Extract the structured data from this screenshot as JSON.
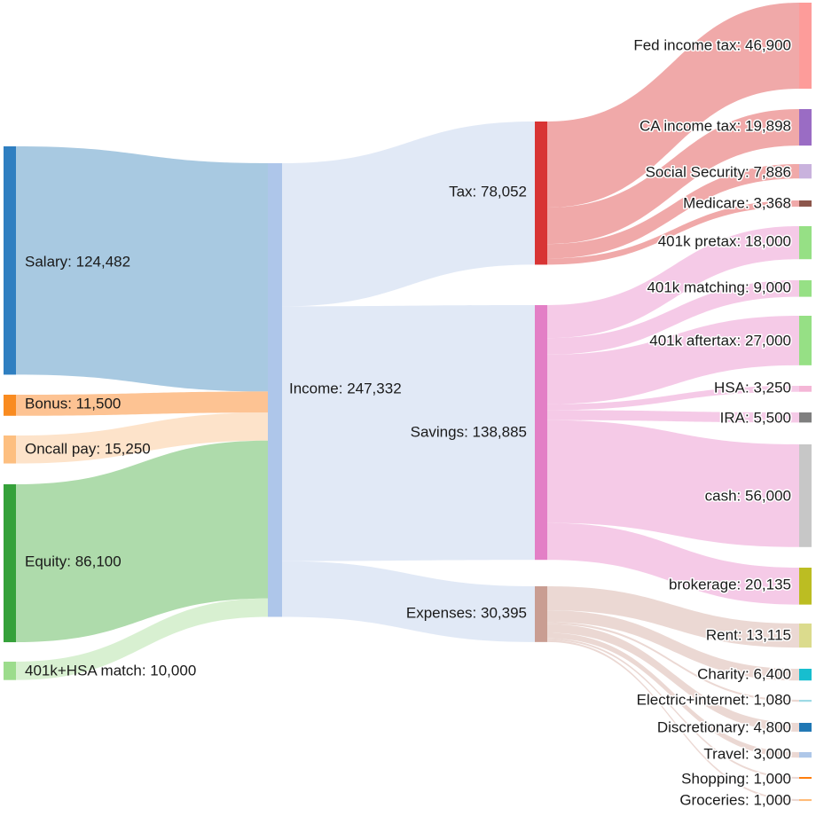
{
  "chart_data": {
    "type": "sankey",
    "nodes": [
      {
        "id": "salary",
        "name": "Salary",
        "value": 124482,
        "label": "Salary: 124,482",
        "color": "#2f7fc1",
        "linkColor": "#a3c6df"
      },
      {
        "id": "bonus",
        "name": "Bonus",
        "value": 11500,
        "label": "Bonus: 11,500",
        "color": "#f98b20",
        "linkColor": "#fdc08d"
      },
      {
        "id": "oncall",
        "name": "Oncall pay",
        "value": 15250,
        "label": "Oncall pay: 15,250",
        "color": "#fdbf80",
        "linkColor": "#fde2c7"
      },
      {
        "id": "equity",
        "name": "Equity",
        "value": 86100,
        "label": "Equity: 86,100",
        "color": "#35a13a",
        "linkColor": "#aad9a6"
      },
      {
        "id": "match",
        "name": "401k+HSA match",
        "value": 10000,
        "label": "401k+HSA match: 10,000",
        "color": "#9cdc8c",
        "linkColor": "#d6efcf"
      },
      {
        "id": "income",
        "name": "Income",
        "value": 247332,
        "label": "Income: 247,332",
        "color": "#aec6ea",
        "linkColor": "#dfe8f5"
      },
      {
        "id": "tax",
        "name": "Tax",
        "value": 78052,
        "label": "Tax: 78,052",
        "color": "#d83434",
        "linkColor": "#efa4a4"
      },
      {
        "id": "savings",
        "name": "Savings",
        "value": 138885,
        "label": "Savings: 138,885",
        "color": "#e37fc6",
        "linkColor": "#f4c7e6"
      },
      {
        "id": "expenses",
        "name": "Expenses",
        "value": 30395,
        "label": "Expenses: 30,395",
        "color": "#c99d92",
        "linkColor": "#ead6d1"
      },
      {
        "id": "fed",
        "name": "Fed income tax",
        "value": 46900,
        "label": "Fed income tax: 46,900",
        "color": "#fd9c9a"
      },
      {
        "id": "ca",
        "name": "CA income tax",
        "value": 19898,
        "label": "CA income tax: 19,898",
        "color": "#9a6cc4"
      },
      {
        "id": "ss",
        "name": "Social Security",
        "value": 7886,
        "label": "Social Security: 7,886",
        "color": "#c9b2dd"
      },
      {
        "id": "medicare",
        "name": "Medicare",
        "value": 3368,
        "label": "Medicare: 3,368",
        "color": "#8c564b"
      },
      {
        "id": "k401pre",
        "name": "401k pretax",
        "value": 18000,
        "label": "401k pretax: 18,000",
        "color": "#96e085"
      },
      {
        "id": "k401match",
        "name": "401k matching",
        "value": 9000,
        "label": "401k matching: 9,000",
        "color": "#96e085"
      },
      {
        "id": "k401after",
        "name": "401k aftertax",
        "value": 27000,
        "label": "401k aftertax: 27,000",
        "color": "#96e085"
      },
      {
        "id": "hsa",
        "name": "HSA",
        "value": 3250,
        "label": "HSA: 3,250",
        "color": "#f4b6d6"
      },
      {
        "id": "ira",
        "name": "IRA",
        "value": 5500,
        "label": "IRA: 5,500",
        "color": "#7f7f7f"
      },
      {
        "id": "cash",
        "name": "cash",
        "value": 56000,
        "label": "cash: 56,000",
        "color": "#c7c7c7"
      },
      {
        "id": "brokerage",
        "name": "brokerage",
        "value": 20135,
        "label": "brokerage: 20,135",
        "color": "#bcbd22"
      },
      {
        "id": "rent",
        "name": "Rent",
        "value": 13115,
        "label": "Rent: 13,115",
        "color": "#dbdb8d"
      },
      {
        "id": "charity",
        "name": "Charity",
        "value": 6400,
        "label": "Charity: 6,400",
        "color": "#17becf"
      },
      {
        "id": "electric",
        "name": "Electric+internet",
        "value": 1080,
        "label": "Electric+internet: 1,080",
        "color": "#9edae5"
      },
      {
        "id": "discretionary",
        "name": "Discretionary",
        "value": 4800,
        "label": "Discretionary: 4,800",
        "color": "#1f77b4"
      },
      {
        "id": "travel",
        "name": "Travel",
        "value": 3000,
        "label": "Travel: 3,000",
        "color": "#aec7e8"
      },
      {
        "id": "shopping",
        "name": "Shopping",
        "value": 1000,
        "label": "Shopping: 1,000",
        "color": "#ff7f0e"
      },
      {
        "id": "groceries",
        "name": "Groceries",
        "value": 1000,
        "label": "Groceries: 1,000",
        "color": "#ffbb78"
      }
    ],
    "links": [
      {
        "source": "salary",
        "target": "income",
        "value": 124482
      },
      {
        "source": "bonus",
        "target": "income",
        "value": 11500
      },
      {
        "source": "oncall",
        "target": "income",
        "value": 15250
      },
      {
        "source": "equity",
        "target": "income",
        "value": 86100
      },
      {
        "source": "match",
        "target": "income",
        "value": 10000
      },
      {
        "source": "income",
        "target": "tax",
        "value": 78052
      },
      {
        "source": "income",
        "target": "savings",
        "value": 138885
      },
      {
        "source": "income",
        "target": "expenses",
        "value": 30395
      },
      {
        "source": "tax",
        "target": "fed",
        "value": 46900
      },
      {
        "source": "tax",
        "target": "ca",
        "value": 19898
      },
      {
        "source": "tax",
        "target": "ss",
        "value": 7886
      },
      {
        "source": "tax",
        "target": "medicare",
        "value": 3368
      },
      {
        "source": "savings",
        "target": "k401pre",
        "value": 18000
      },
      {
        "source": "savings",
        "target": "k401match",
        "value": 9000
      },
      {
        "source": "savings",
        "target": "k401after",
        "value": 27000
      },
      {
        "source": "savings",
        "target": "hsa",
        "value": 3250
      },
      {
        "source": "savings",
        "target": "ira",
        "value": 5500
      },
      {
        "source": "savings",
        "target": "cash",
        "value": 56000
      },
      {
        "source": "savings",
        "target": "brokerage",
        "value": 20135
      },
      {
        "source": "expenses",
        "target": "rent",
        "value": 13115
      },
      {
        "source": "expenses",
        "target": "charity",
        "value": 6400
      },
      {
        "source": "expenses",
        "target": "electric",
        "value": 1080
      },
      {
        "source": "expenses",
        "target": "discretionary",
        "value": 4800
      },
      {
        "source": "expenses",
        "target": "travel",
        "value": 3000
      },
      {
        "source": "expenses",
        "target": "shopping",
        "value": 1000
      },
      {
        "source": "expenses",
        "target": "groceries",
        "value": 1000
      }
    ]
  }
}
